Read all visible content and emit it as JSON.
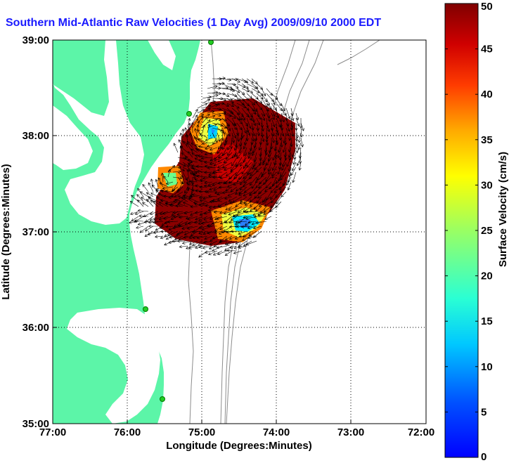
{
  "title": "Southern Mid-Atlantic Raw Velocities (1 Day Avg) 2009/09/10 2000 EDT",
  "map": {
    "xlabel": "Longitude (Degrees:Minutes)",
    "ylabel": "Latitude (Degrees:Minutes)",
    "xticks": [
      "77:00",
      "76:00",
      "75:00",
      "74:00",
      "73:00",
      "72:00"
    ],
    "yticks": [
      "39:00",
      "38:00",
      "37:00",
      "36:00",
      "35:00"
    ],
    "lon_range": [
      -77,
      -72
    ],
    "lat_range": [
      35,
      39
    ],
    "grid": "dotted",
    "land_color": "#5cf5a8",
    "contour_color": "#8c8c8c",
    "station_color": "#22cc22"
  },
  "colorbar": {
    "label": "Surface Velocity (cm/s)",
    "ticks": [
      "0",
      "5",
      "10",
      "15",
      "20",
      "25",
      "30",
      "35",
      "40",
      "45",
      "50"
    ],
    "range": [
      0,
      50
    ],
    "colormap": "jet"
  }
}
